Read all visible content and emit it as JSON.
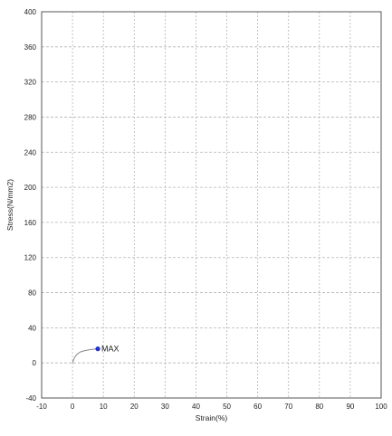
{
  "chart_data": {
    "type": "line",
    "title": "",
    "xlabel": "Strain(%)",
    "ylabel": "Stress(N/mm2)",
    "xlim": [
      -10,
      100
    ],
    "ylim": [
      -40,
      400
    ],
    "xticks": [
      -10,
      0,
      10,
      20,
      30,
      40,
      50,
      60,
      70,
      80,
      90,
      100
    ],
    "yticks": [
      -40,
      0,
      40,
      80,
      120,
      160,
      200,
      240,
      280,
      320,
      360,
      400
    ],
    "grid": true,
    "series": [
      {
        "x": [
          0.0,
          0.3,
          0.8,
          1.5,
          2.5,
          4.0,
          5.5,
          7.0,
          8.2
        ],
        "y": [
          0.0,
          3.0,
          7.0,
          10.0,
          12.5,
          14.0,
          15.0,
          15.6,
          16.0
        ]
      }
    ],
    "annotations": [
      {
        "text": "MAX",
        "x": 8.2,
        "y": 16.0
      }
    ],
    "colors": {
      "curve": "#888888",
      "marker": "#1f2fd0",
      "grid": "#b4b4b4",
      "frame": "#555555"
    }
  }
}
